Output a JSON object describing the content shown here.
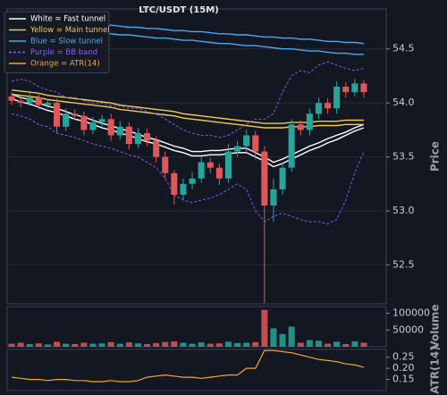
{
  "chart_data": [
    {
      "type": "candlestick",
      "title": "LTC/USDT (15M)",
      "ylabel": "Price",
      "up_color": "#26a69a",
      "down_color": "#e0575b",
      "ylim": [
        52.14,
        54.87
      ],
      "yticks": [
        52.5,
        {
          "value": 53,
          "label": "53.0"
        },
        53.5,
        {
          "value": 54,
          "label": "54.0"
        },
        54.5
      ],
      "grid": true,
      "open": [
        54.06,
        54.02,
        54.0,
        54.05,
        53.98,
        54.0,
        53.78,
        53.9,
        53.88,
        53.75,
        53.82,
        53.85,
        53.7,
        53.78,
        53.62,
        53.72,
        53.65,
        53.5,
        53.35,
        53.15,
        53.25,
        53.3,
        53.45,
        53.4,
        53.3,
        53.55,
        53.6,
        53.7,
        53.55,
        53.05,
        53.2,
        53.4,
        53.8,
        53.75,
        53.9,
        54.0,
        53.95,
        54.15,
        54.1,
        54.18
      ],
      "high": [
        54.1,
        54.06,
        54.09,
        54.09,
        54.04,
        54.04,
        53.95,
        53.94,
        53.92,
        53.87,
        53.89,
        53.9,
        53.83,
        53.82,
        53.77,
        53.76,
        53.69,
        53.55,
        53.38,
        53.3,
        53.36,
        53.5,
        53.49,
        53.44,
        53.62,
        53.65,
        53.75,
        53.74,
        53.6,
        53.3,
        53.45,
        53.85,
        53.84,
        53.95,
        54.05,
        54.04,
        54.2,
        54.19,
        54.22,
        54.21
      ],
      "low": [
        53.98,
        53.96,
        53.97,
        53.94,
        53.95,
        53.72,
        53.74,
        53.84,
        53.7,
        53.71,
        53.78,
        53.65,
        53.66,
        53.57,
        53.58,
        53.6,
        53.45,
        53.3,
        53.06,
        53.1,
        53.2,
        53.26,
        53.35,
        53.24,
        53.26,
        53.5,
        53.55,
        53.48,
        52.15,
        52.9,
        53.15,
        53.36,
        53.7,
        53.7,
        53.85,
        53.9,
        53.9,
        54.05,
        54.06,
        54.05
      ],
      "close": [
        54.02,
        54.0,
        54.05,
        53.98,
        54.0,
        53.78,
        53.9,
        53.88,
        53.75,
        53.82,
        53.85,
        53.7,
        53.78,
        53.62,
        53.72,
        53.65,
        53.5,
        53.35,
        53.15,
        53.25,
        53.3,
        53.45,
        53.4,
        53.3,
        53.55,
        53.6,
        53.7,
        53.55,
        53.05,
        53.2,
        53.4,
        53.8,
        53.75,
        53.9,
        54.0,
        53.95,
        54.15,
        54.1,
        54.18,
        54.1
      ],
      "series": [
        {
          "name": "White = Fast tunnel",
          "color": "#ffffff",
          "dashed": false,
          "upper": [
            54.08,
            54.05,
            54.03,
            54.0,
            53.97,
            53.95,
            53.92,
            53.89,
            53.87,
            53.84,
            53.81,
            53.79,
            53.76,
            53.74,
            53.71,
            53.68,
            53.66,
            53.63,
            53.6,
            53.58,
            53.55,
            53.55,
            53.56,
            53.56,
            53.57,
            53.58,
            53.58,
            53.54,
            53.5,
            53.45,
            53.48,
            53.52,
            53.56,
            53.6,
            53.63,
            53.67,
            53.7,
            53.73,
            53.77,
            53.8
          ],
          "lower": [
            54.04,
            54.01,
            53.99,
            53.96,
            53.93,
            53.91,
            53.88,
            53.85,
            53.83,
            53.8,
            53.77,
            53.75,
            53.72,
            53.7,
            53.67,
            53.64,
            53.62,
            53.59,
            53.56,
            53.54,
            53.51,
            53.51,
            53.52,
            53.52,
            53.53,
            53.54,
            53.54,
            53.5,
            53.46,
            53.41,
            53.44,
            53.48,
            53.52,
            53.56,
            53.59,
            53.63,
            53.66,
            53.7,
            53.74,
            53.77
          ]
        },
        {
          "name": "Yellow = Main tunnel",
          "color": "#f2c94c",
          "dashed": false,
          "upper": [
            54.12,
            54.11,
            54.1,
            54.09,
            54.07,
            54.06,
            54.05,
            54.04,
            54.03,
            54.02,
            54.01,
            54.0,
            53.98,
            53.97,
            53.96,
            53.95,
            53.94,
            53.93,
            53.92,
            53.9,
            53.89,
            53.88,
            53.87,
            53.86,
            53.85,
            53.84,
            53.83,
            53.82,
            53.81,
            53.81,
            53.81,
            53.82,
            53.82,
            53.82,
            53.83,
            53.83,
            53.83,
            53.84,
            53.84,
            53.84
          ],
          "lower": [
            54.08,
            54.07,
            54.06,
            54.05,
            54.03,
            54.02,
            54.01,
            54.0,
            53.99,
            53.98,
            53.97,
            53.96,
            53.94,
            53.93,
            53.92,
            53.91,
            53.9,
            53.89,
            53.88,
            53.86,
            53.85,
            53.84,
            53.83,
            53.82,
            53.81,
            53.8,
            53.79,
            53.78,
            53.77,
            53.77,
            53.77,
            53.78,
            53.78,
            53.78,
            53.79,
            53.79,
            53.79,
            53.8,
            53.8,
            53.8
          ]
        },
        {
          "name": "Blue = Slow tunnel",
          "color": "#4aa8f0",
          "dashed": false,
          "upper": [
            54.78,
            54.77,
            54.77,
            54.76,
            54.76,
            54.75,
            54.74,
            54.74,
            54.73,
            54.73,
            54.72,
            54.72,
            54.71,
            54.7,
            54.7,
            54.69,
            54.69,
            54.68,
            54.67,
            54.67,
            54.66,
            54.66,
            54.65,
            54.64,
            54.64,
            54.63,
            54.63,
            54.62,
            54.61,
            54.61,
            54.6,
            54.6,
            54.59,
            54.59,
            54.58,
            54.57,
            54.57,
            54.56,
            54.56,
            54.55
          ],
          "lower": [
            54.72,
            54.71,
            54.7,
            54.7,
            54.69,
            54.68,
            54.68,
            54.67,
            54.66,
            54.65,
            54.65,
            54.64,
            54.63,
            54.63,
            54.62,
            54.61,
            54.6,
            54.6,
            54.59,
            54.58,
            54.58,
            54.57,
            54.56,
            54.55,
            54.55,
            54.54,
            54.53,
            54.53,
            54.52,
            54.51,
            54.5,
            54.5,
            54.49,
            54.48,
            54.48,
            54.47,
            54.46,
            54.46,
            54.45,
            54.45
          ]
        },
        {
          "name": "Purple = BB band",
          "color": "#8a5cf5",
          "dashed": true,
          "upper": [
            54.2,
            54.22,
            54.2,
            54.15,
            54.12,
            54.1,
            54.05,
            54.05,
            54.02,
            54.0,
            54.0,
            53.98,
            53.97,
            53.95,
            53.95,
            53.92,
            53.9,
            53.85,
            53.8,
            53.75,
            53.72,
            53.7,
            53.7,
            53.68,
            53.7,
            53.75,
            53.8,
            53.85,
            53.85,
            53.9,
            54.1,
            54.25,
            54.3,
            54.28,
            54.35,
            54.38,
            54.35,
            54.32,
            54.3,
            54.32
          ],
          "lower": [
            53.9,
            53.88,
            53.85,
            53.8,
            53.78,
            53.72,
            53.7,
            53.68,
            53.65,
            53.62,
            53.6,
            53.58,
            53.55,
            53.52,
            53.5,
            53.45,
            53.4,
            53.3,
            53.15,
            53.1,
            53.08,
            53.1,
            53.12,
            53.15,
            53.2,
            53.25,
            53.2,
            53.0,
            52.9,
            52.95,
            52.98,
            52.95,
            52.92,
            52.9,
            52.9,
            52.88,
            52.92,
            53.1,
            53.35,
            53.55
          ]
        }
      ]
    },
    {
      "type": "bar",
      "ylabel": "Volume",
      "ylim": [
        0,
        120000
      ],
      "yticks": [
        50000,
        100000
      ],
      "values": [
        9000,
        12000,
        8000,
        10000,
        7000,
        15000,
        9000,
        8000,
        12000,
        9000,
        10000,
        14000,
        9000,
        13000,
        10000,
        8000,
        11000,
        14000,
        16000,
        12000,
        9000,
        13000,
        9000,
        10000,
        15000,
        11000,
        12000,
        14000,
        110000,
        55000,
        38000,
        60000,
        12000,
        20000,
        18000,
        9000,
        15000,
        8000,
        16000,
        12000
      ]
    },
    {
      "type": "line",
      "ylabel": "ATR(14)",
      "ylim": [
        0.1,
        0.285
      ],
      "yticks": [
        0.15,
        {
          "value": 0.2,
          "label": "0.20"
        },
        0.25
      ],
      "series": [
        {
          "name": "Orange = ATR(14)",
          "color": "#f5a623",
          "values": [
            0.16,
            0.155,
            0.15,
            0.15,
            0.145,
            0.15,
            0.15,
            0.145,
            0.145,
            0.14,
            0.14,
            0.145,
            0.14,
            0.14,
            0.145,
            0.16,
            0.165,
            0.17,
            0.165,
            0.16,
            0.16,
            0.155,
            0.16,
            0.165,
            0.17,
            0.17,
            0.2,
            0.2,
            0.28,
            0.28,
            0.275,
            0.27,
            0.26,
            0.25,
            0.24,
            0.235,
            0.23,
            0.22,
            0.215,
            0.205
          ]
        }
      ]
    }
  ]
}
